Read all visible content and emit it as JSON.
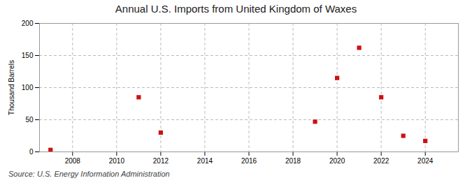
{
  "chart_data": {
    "type": "scatter",
    "title": "Annual U.S. Imports from United Kingdom of Waxes",
    "ylabel": "Thousand Barrels",
    "source": "Source: U.S. Energy Information Administration",
    "x": [
      2007,
      2011,
      2012,
      2019,
      2020,
      2021,
      2022,
      2023,
      2024
    ],
    "values": [
      3,
      85,
      30,
      47,
      115,
      162,
      85,
      25,
      17
    ],
    "color": "#cc1111",
    "marker": "square",
    "xlim": [
      2006.5,
      2025.5
    ],
    "ylim": [
      0,
      200
    ],
    "xticks": [
      2008,
      2010,
      2012,
      2014,
      2016,
      2018,
      2020,
      2022,
      2024
    ],
    "yticks": [
      0,
      50,
      100,
      150,
      200
    ],
    "grid": true
  }
}
